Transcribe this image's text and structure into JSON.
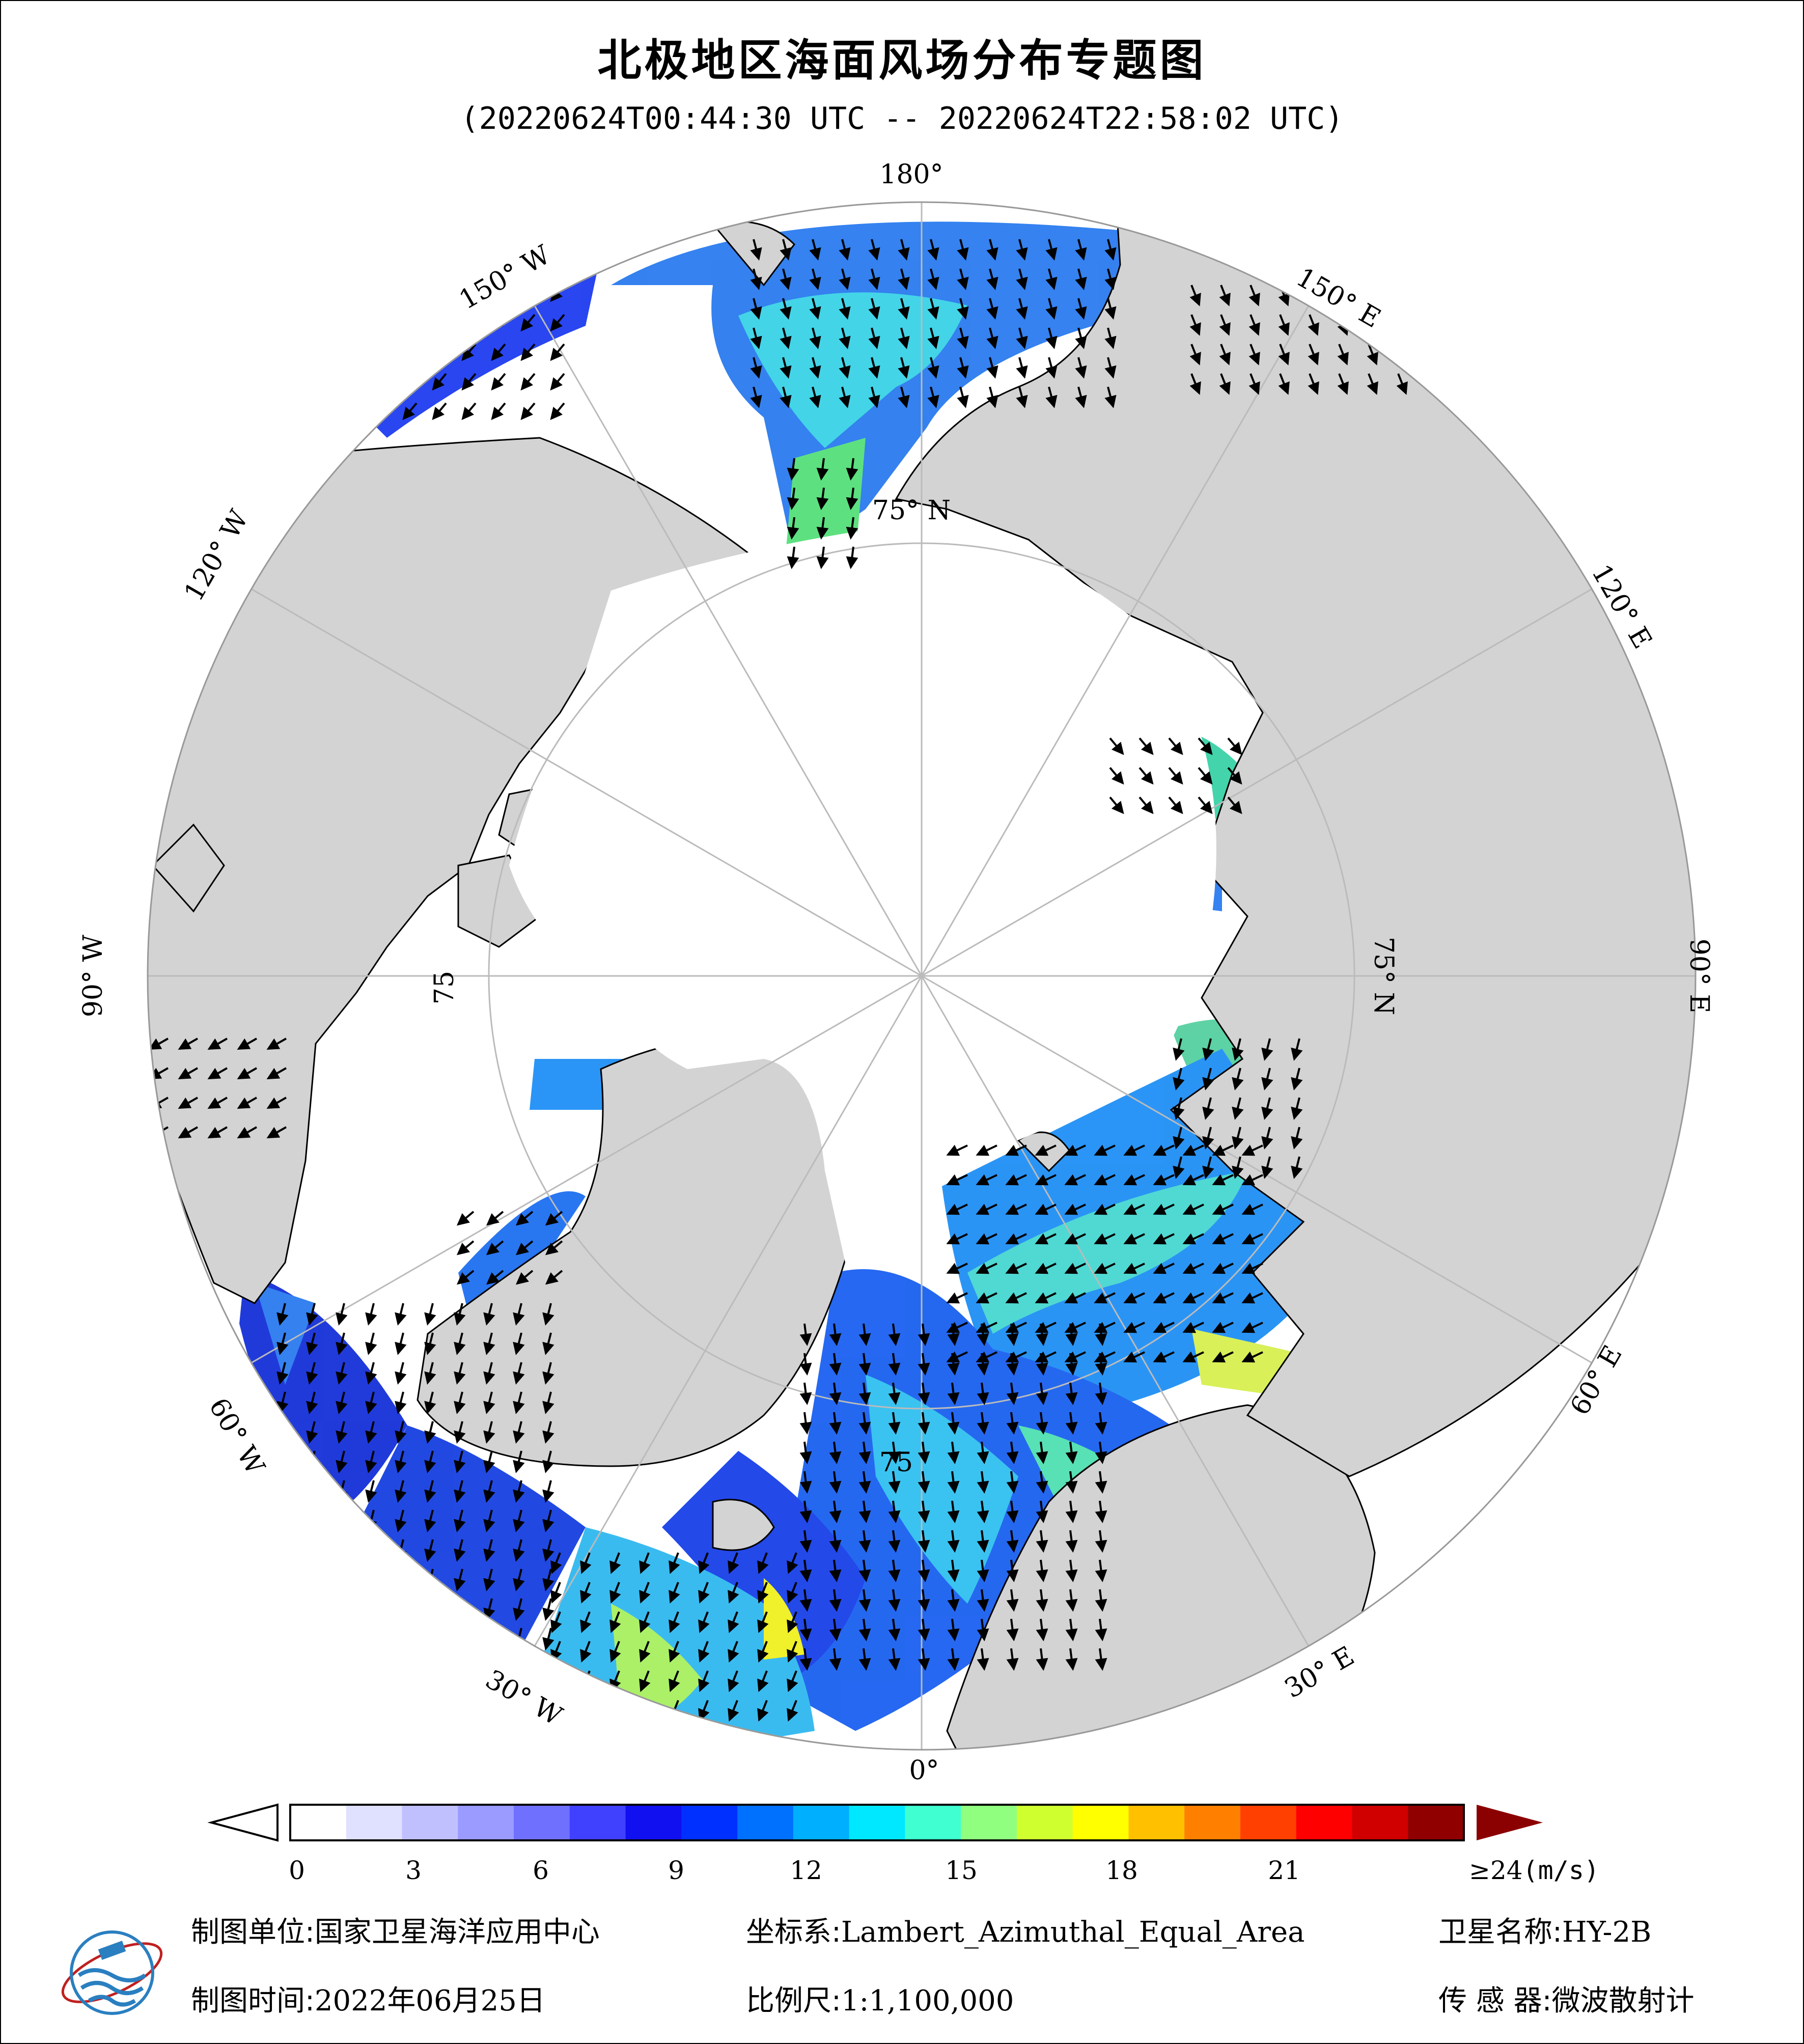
{
  "title": "北极地区海面风场分布专题图",
  "subtitle": "(20220624T00:44:30 UTC -- 20220624T22:58:02 UTC)",
  "map": {
    "projection_labels": {
      "lon_180": "180°",
      "lon_150w": "150° W",
      "lon_150e": "150° E",
      "lon_120w": "120° W",
      "lon_120e": "120° E",
      "lon_90w": "90° W",
      "lon_90e": "90° E",
      "lon_60w": "60° W",
      "lon_60e": "60° E",
      "lon_30w": "30° W",
      "lon_30e": "30° E",
      "lon_0": "0°",
      "lat_75_n": "75° N",
      "lat_75_e": "75° N",
      "lat_75_w": "75",
      "lat_75_s": "75"
    },
    "colors": {
      "ocean_no_data": "#ffffff",
      "land": "#d3d3d3",
      "grid": "#bbbbbb",
      "arrow": "#000000"
    }
  },
  "colorbar": {
    "ticks": [
      "0",
      "3",
      "6",
      "9",
      "12",
      "15",
      "18",
      "21"
    ],
    "max_label": "≥24",
    "unit": "(m/s)",
    "colors": [
      "#ffffff",
      "#e0e0ff",
      "#c0c0ff",
      "#9a9aff",
      "#7070ff",
      "#4040ff",
      "#1010f0",
      "#0030ff",
      "#0070ff",
      "#00b0ff",
      "#00e8ff",
      "#40ffd0",
      "#90ff80",
      "#d0ff30",
      "#ffff00",
      "#ffc000",
      "#ff8000",
      "#ff4000",
      "#ff0000",
      "#d00000",
      "#900000"
    ],
    "under_color": "#ffffff",
    "over_color": "#8b0000"
  },
  "footer": {
    "unit_label": "制图单位:",
    "unit_value": "国家卫星海洋应用中心",
    "coord_label": "坐标系:",
    "coord_value": "Lambert_Azimuthal_Equal_Area",
    "satellite_label": "卫星名称:",
    "satellite_value": "HY-2B",
    "time_label": "制图时间:",
    "time_value": "2022年06月25日",
    "scale_label": "比例尺:",
    "scale_value": "1:1,100,000",
    "sensor_label": "传 感 器:",
    "sensor_value": "微波散射计"
  }
}
